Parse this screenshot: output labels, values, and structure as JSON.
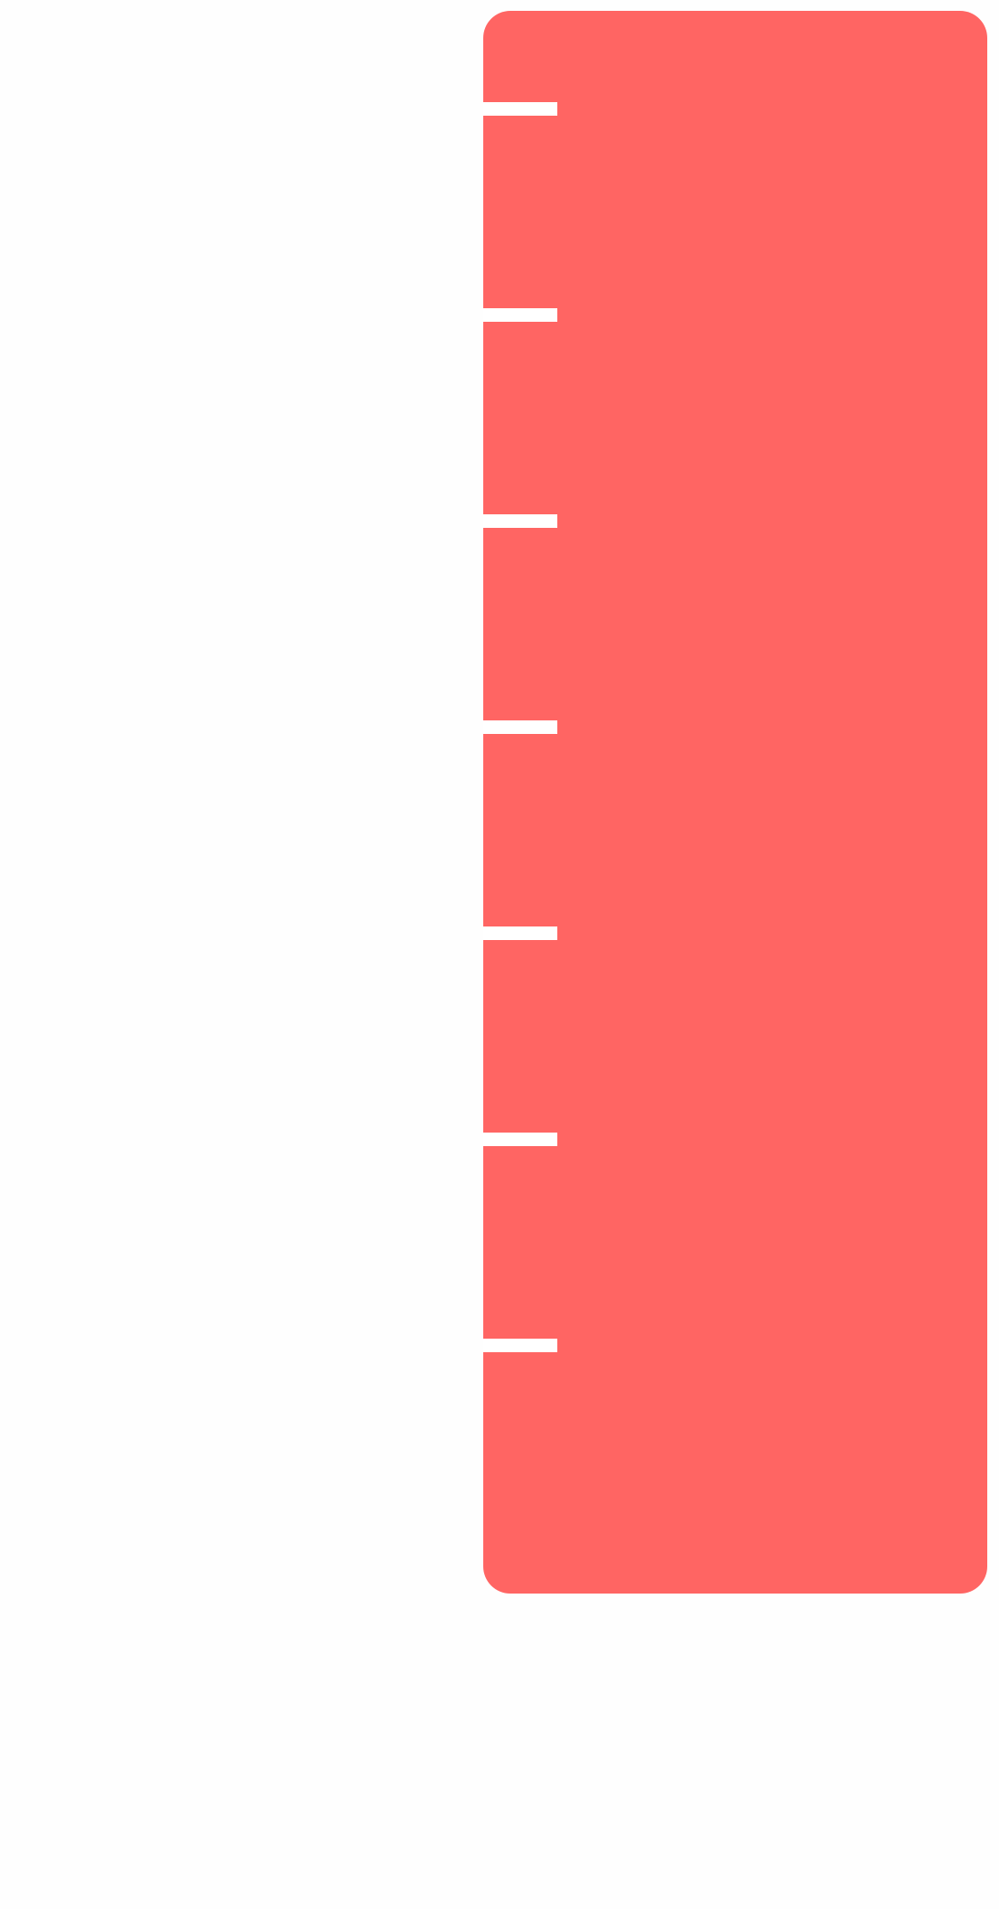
{
  "ruler": {
    "color": "#ff6563",
    "tick_color": "#ffffff",
    "tick_count": 7
  }
}
